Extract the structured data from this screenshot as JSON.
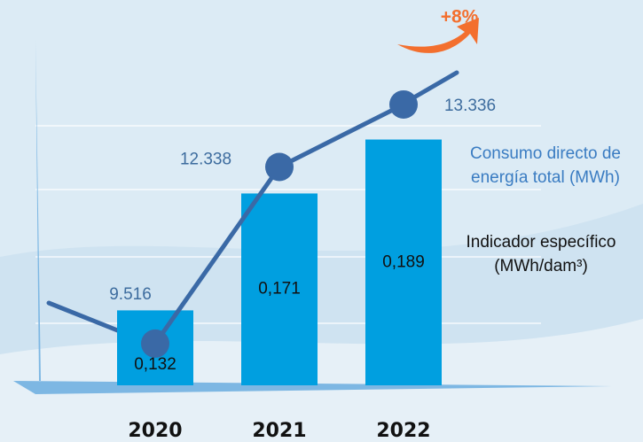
{
  "chart_data": {
    "type": "combo",
    "categories": [
      "2020",
      "2021",
      "2022"
    ],
    "series": [
      {
        "name": "Indicador específico (MWh/dam³)",
        "type": "bar",
        "color": "#009fe0",
        "values": [
          0.132,
          0.171,
          0.189
        ],
        "value_labels": [
          "0,132",
          "0,171",
          "0,189"
        ]
      },
      {
        "name": "Consumo directo de energía total (MWh)",
        "type": "line",
        "axis": "y2",
        "color": "#3a69a6",
        "values": [
          9516,
          12338,
          13336
        ],
        "value_labels": [
          "9.516",
          "12.338",
          "13.336"
        ]
      }
    ],
    "annotation": "+8%",
    "ylim": [
      0.107,
      0.206
    ],
    "y2lim": [
      8850,
      13590
    ]
  }
}
